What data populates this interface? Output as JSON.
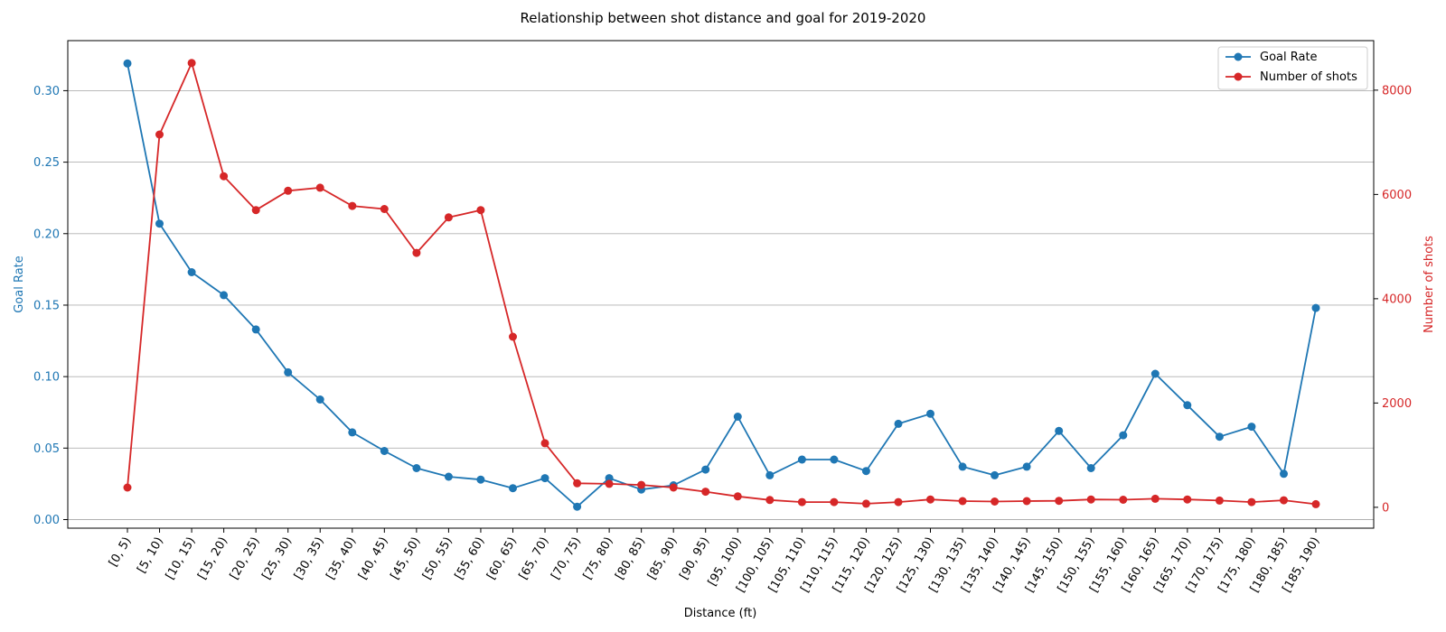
{
  "chart_data": {
    "type": "line",
    "title": "Relationship between shot distance and goal for 2019-2020",
    "xlabel": "Distance (ft)",
    "ylabel_left": "Goal Rate",
    "ylabel_right": "Number of shots",
    "grid": "horizontal",
    "legend_position": "top-right",
    "categories": [
      "[0, 5)",
      "[5, 10)",
      "[10, 15)",
      "[15, 20)",
      "[20, 25)",
      "[25, 30)",
      "[30, 35)",
      "[35, 40)",
      "[40, 45)",
      "[45, 50)",
      "[50, 55)",
      "[55, 60)",
      "[60, 65)",
      "[65, 70)",
      "[70, 75)",
      "[75, 80)",
      "[80, 85)",
      "[85, 90)",
      "[90, 95)",
      "[95, 100)",
      "[100, 105)",
      "[105, 110)",
      "[110, 115)",
      "[115, 120)",
      "[120, 125)",
      "[125, 130)",
      "[130, 135)",
      "[135, 140)",
      "[140, 145)",
      "[145, 150)",
      "[150, 155)",
      "[155, 160)",
      "[160, 165)",
      "[165, 170)",
      "[170, 175)",
      "[175, 180)",
      "[180, 185)",
      "[185, 190)"
    ],
    "left_axis": {
      "ylim": [
        -0.006,
        0.335
      ],
      "ticks": [
        0.0,
        0.05,
        0.1,
        0.15,
        0.2,
        0.25,
        0.3
      ],
      "tick_labels": [
        "0.00",
        "0.05",
        "0.10",
        "0.15",
        "0.20",
        "0.25",
        "0.30"
      ],
      "color": "#1f77b4"
    },
    "right_axis": {
      "ylim": [
        -400,
        8950
      ],
      "ticks": [
        0,
        2000,
        4000,
        6000,
        8000
      ],
      "tick_labels": [
        "0",
        "2000",
        "4000",
        "6000",
        "8000"
      ],
      "color": "#d62728"
    },
    "series": [
      {
        "name": "Goal Rate",
        "axis": "left",
        "color": "#1f77b4",
        "values": [
          0.319,
          0.207,
          0.173,
          0.157,
          0.133,
          0.103,
          0.084,
          0.061,
          0.048,
          0.036,
          0.03,
          0.028,
          0.022,
          0.029,
          0.009,
          0.029,
          0.021,
          0.024,
          0.035,
          0.072,
          0.031,
          0.042,
          0.042,
          0.034,
          0.067,
          0.074,
          0.037,
          0.031,
          0.037,
          0.062,
          0.036,
          0.059,
          0.102,
          0.08,
          0.058,
          0.065,
          0.032,
          0.148
        ]
      },
      {
        "name": "Number of shots",
        "axis": "right",
        "color": "#d62728",
        "values": [
          380,
          7150,
          8520,
          6350,
          5700,
          6070,
          6130,
          5780,
          5720,
          4880,
          5560,
          5700,
          3270,
          1230,
          460,
          450,
          430,
          380,
          300,
          210,
          140,
          100,
          100,
          70,
          100,
          150,
          120,
          110,
          120,
          125,
          150,
          145,
          165,
          150,
          130,
          100,
          135,
          60
        ]
      }
    ]
  }
}
